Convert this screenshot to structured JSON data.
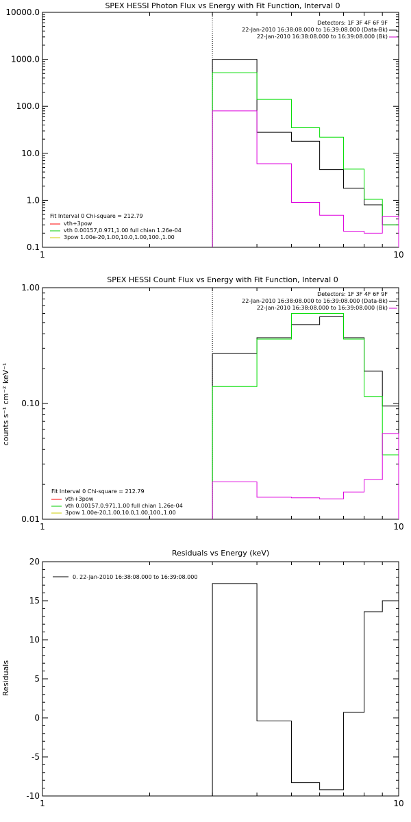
{
  "chart_data": [
    {
      "type": "line",
      "title": "SPEX HESSI Photon Flux vs Energy with Fit Function, Interval 0",
      "xscale": "log",
      "yscale": "log",
      "xlim": [
        1,
        10
      ],
      "ylim": [
        0.1,
        10000
      ],
      "xticks": [
        1,
        10
      ],
      "xtick_labels": [
        "1",
        "10"
      ],
      "yticks": [
        0.1,
        1,
        10,
        100,
        1000,
        10000
      ],
      "ytick_labels": [
        "0.1",
        "1.0",
        "10.0",
        "100.0",
        "1000.0",
        "10000.0"
      ],
      "vline_x": 3,
      "header_lines": [
        "Detectors: 1F 3F 4F 6F 9F",
        "22-Jan-2010 16:38:08.000 to 16:39:08.000 (Data-Bk)",
        "22-Jan-2010 16:38:08.000 to 16:39:08.000 (Bk)"
      ],
      "header_swatch_colors": [
        "#000000",
        "#cc00cc"
      ],
      "fit_lines": [
        "Fit Interval 0    Chi-square = 212.79",
        "vth+3pow",
        "vth 0.00157,0.971,1.00  full chian 1.26e-04",
        "3pow 1.00e-20,1.00,10.0,1.00,100.,1.00"
      ],
      "fit_swatch_colors": [
        "#ff0000",
        "#00cc00",
        "#cccc00"
      ],
      "bin_edges": [
        3,
        4,
        5,
        6,
        7,
        8,
        9,
        10
      ],
      "series": [
        {
          "color": "#000000",
          "values": [
            1000,
            28,
            18,
            4.5,
            1.8,
            0.8,
            0.3
          ]
        },
        {
          "color": "#00dd00",
          "values": [
            520,
            140,
            35,
            22,
            4.6,
            1.05,
            0.3
          ]
        },
        {
          "color": "#dd00dd",
          "values": [
            80,
            6,
            0.9,
            0.48,
            0.22,
            0.2,
            0.45
          ]
        }
      ]
    },
    {
      "type": "line",
      "title": "SPEX HESSI Count Flux vs Energy with Fit Function, Interval 0",
      "ylabel": "counts s⁻¹ cm⁻² keV⁻¹",
      "xscale": "log",
      "yscale": "log",
      "xlim": [
        1,
        10
      ],
      "ylim": [
        0.01,
        1
      ],
      "xticks": [
        1,
        10
      ],
      "xtick_labels": [
        "1",
        "10"
      ],
      "yticks": [
        0.01,
        0.1,
        1
      ],
      "ytick_labels": [
        "0.01",
        "0.10",
        "1.00"
      ],
      "vline_x": 3,
      "header_lines": [
        "Detectors: 1F 3F 4F 6F 9F",
        "22-Jan-2010 16:38:08.000 to 16:39:08.000 (Data-Bk)",
        "22-Jan-2010 16:38:08.000 to 16:39:08.000 (Bk)"
      ],
      "header_swatch_colors": [
        "#000000",
        "#cc00cc"
      ],
      "fit_lines": [
        "Fit Interval 0    Chi-square = 212.79",
        "vth+3pow",
        "vth 0.00157,0.971,1.00  full chian 1.26e-04",
        "3pow 1.00e-20,1.00,10.0,1.00,100.,1.00"
      ],
      "fit_swatch_colors": [
        "#ff0000",
        "#00cc00",
        "#cccc00"
      ],
      "bin_edges": [
        3,
        4,
        5,
        6,
        7,
        8,
        9,
        10
      ],
      "series": [
        {
          "color": "#000000",
          "values": [
            0.27,
            0.37,
            0.48,
            0.56,
            0.37,
            0.19,
            0.095
          ]
        },
        {
          "color": "#00dd00",
          "values": [
            0.14,
            0.36,
            0.6,
            0.6,
            0.36,
            0.115,
            0.036
          ]
        },
        {
          "color": "#dd00dd",
          "values": [
            0.021,
            0.0155,
            0.0153,
            0.015,
            0.0172,
            0.022,
            0.055
          ]
        }
      ]
    },
    {
      "type": "line",
      "title": "Residuals vs Energy (keV)",
      "ylabel": "Residuals",
      "xscale": "log",
      "yscale": "linear",
      "xlim": [
        1,
        10
      ],
      "ylim": [
        -10,
        20
      ],
      "xticks": [
        1,
        10
      ],
      "xtick_labels": [
        "1",
        "10"
      ],
      "yticks": [
        -10,
        -5,
        0,
        5,
        10,
        15,
        20
      ],
      "ytick_labels": [
        "-10",
        "-5",
        "0",
        "5",
        "10",
        "15",
        "20"
      ],
      "legend_text": "0. 22-Jan-2010 16:38:08.000 to 16:39:08.000",
      "legend_placement": "top-left",
      "bin_edges": [
        3,
        4,
        5,
        6,
        7,
        8,
        9,
        10
      ],
      "series": [
        {
          "color": "#000000",
          "values": [
            17.2,
            -0.4,
            -8.3,
            -9.2,
            0.7,
            13.6,
            15
          ]
        }
      ]
    }
  ]
}
